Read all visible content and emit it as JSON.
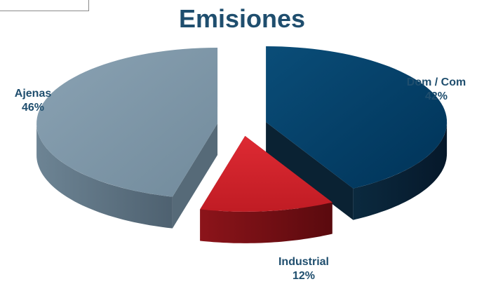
{
  "chart_data": {
    "type": "pie",
    "title": "Emisiones",
    "slices": [
      {
        "label": "Dom / Com",
        "value": 42,
        "percent_label": "42%",
        "color": "#003b5f",
        "side_color": "#0a2233"
      },
      {
        "label": "Industrial",
        "value": 12,
        "percent_label": "12%",
        "color": "#c8202a",
        "side_color": "#6e0e12"
      },
      {
        "label": "Ajenas",
        "value": 46,
        "percent_label": "46%",
        "color": "#7e97a8",
        "side_color": "#566a78"
      }
    ],
    "label_color": "#1f4e6e",
    "legend": "none",
    "style": "3d-exploded"
  }
}
